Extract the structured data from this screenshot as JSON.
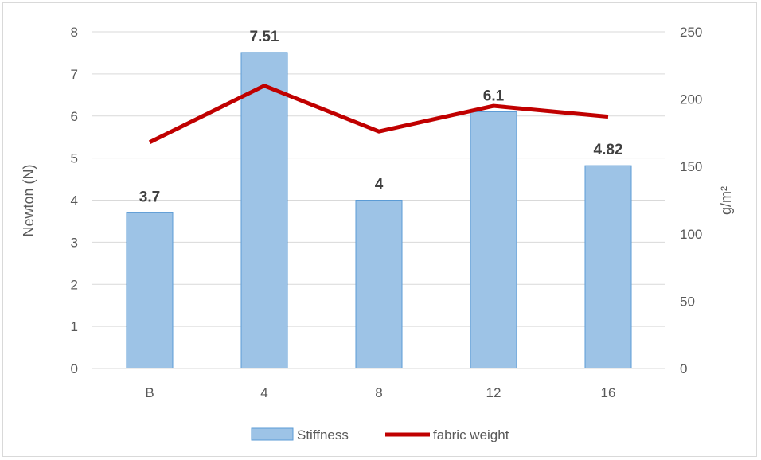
{
  "chart_data": {
    "type": "bar",
    "categories": [
      "B",
      "4",
      "8",
      "12",
      "16"
    ],
    "series": [
      {
        "name": "Stiffness",
        "type": "bar",
        "axis": "left",
        "values": [
          3.7,
          7.51,
          4,
          6.1,
          4.82
        ],
        "data_labels": [
          "3.7",
          "7.51",
          "4",
          "6.1",
          "4.82"
        ],
        "color": "#9dc3e6",
        "border_color": "#5b9bd5"
      },
      {
        "name": "fabric weight",
        "type": "line",
        "axis": "right",
        "values": [
          168,
          210,
          176,
          195,
          187
        ],
        "color": "#c00000"
      }
    ],
    "ylabel": "Newton  (N)",
    "ylabel_right": "g/m²",
    "ylim": [
      0,
      8
    ],
    "ylim_right": [
      0,
      250
    ],
    "yticks": [
      "0",
      "1",
      "2",
      "3",
      "4",
      "5",
      "6",
      "7",
      "8"
    ],
    "yticks_right": [
      "0",
      "50",
      "100",
      "150",
      "200",
      "250"
    ],
    "grid": true,
    "legend_position": "bottom"
  }
}
